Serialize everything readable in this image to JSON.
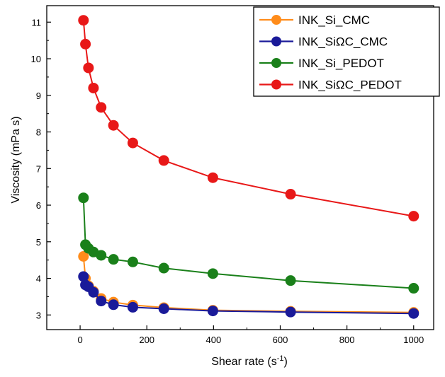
{
  "chart_data": {
    "type": "line",
    "title": "",
    "xlabel": "Shear rate (s",
    "xlabel_sup": "-1",
    "xlabel_close": ")",
    "ylabel": "Viscosity (mPa s)",
    "xlim": [
      -100,
      1060
    ],
    "ylim": [
      2.6,
      11.45
    ],
    "x_ticks": [
      0,
      200,
      400,
      600,
      800,
      1000
    ],
    "x_tick_labels": [
      "0",
      "200",
      "400",
      "600",
      "800",
      "1000"
    ],
    "y_ticks": [
      3,
      4,
      5,
      6,
      7,
      8,
      9,
      10,
      11
    ],
    "y_tick_labels": [
      "3",
      "4",
      "5",
      "6",
      "7",
      "8",
      "9",
      "10",
      "11"
    ],
    "grid": false,
    "legend_position": "top-right",
    "x": [
      10,
      16,
      25,
      40,
      63,
      100,
      158,
      251,
      398,
      631,
      1000
    ],
    "series": [
      {
        "name": "INK_Si_CMC",
        "color": "#ff8c1a",
        "values": [
          4.6,
          4.0,
          3.8,
          3.65,
          3.45,
          3.35,
          3.27,
          3.2,
          3.13,
          3.1,
          3.07
        ]
      },
      {
        "name": "INK_SiΩC_CMC",
        "color": "#1a1a99",
        "values": [
          4.05,
          3.82,
          3.77,
          3.62,
          3.38,
          3.28,
          3.21,
          3.17,
          3.11,
          3.08,
          3.04
        ]
      },
      {
        "name": "INK_Si_PEDOT",
        "color": "#1a801a",
        "values": [
          6.2,
          4.92,
          4.82,
          4.72,
          4.63,
          4.52,
          4.45,
          4.28,
          4.13,
          3.94,
          3.73
        ]
      },
      {
        "name": "INK_SiΩC_PEDOT",
        "color": "#e81818",
        "values": [
          11.05,
          10.4,
          9.75,
          9.2,
          8.67,
          8.18,
          7.7,
          7.22,
          6.75,
          6.3,
          5.7
        ]
      }
    ]
  }
}
